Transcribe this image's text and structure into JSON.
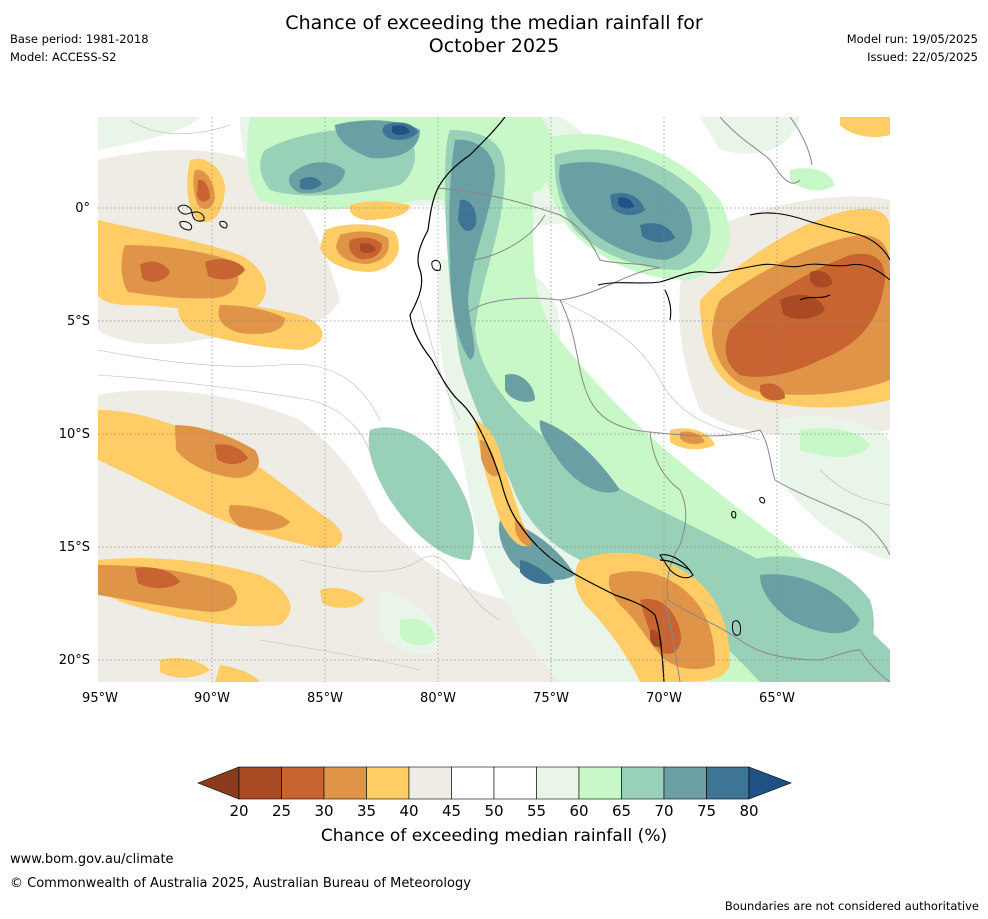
{
  "title_line1": "Chance of exceeding the median rainfall for",
  "title_line2": "October 2025",
  "meta_left": {
    "base_period": "Base period: 1981-2018",
    "model": "Model: ACCESS-S2"
  },
  "meta_right": {
    "model_run": "Model run: 19/05/2025",
    "issued": "Issued: 22/05/2025"
  },
  "map": {
    "lat_labels": [
      "0°",
      "5°S",
      "10°S",
      "15°S",
      "20°S"
    ],
    "lon_labels": [
      "95°W",
      "90°W",
      "85°W",
      "80°W",
      "75°W",
      "70°W",
      "65°W"
    ],
    "lat_values": [
      0,
      -5,
      -10,
      -15,
      -20
    ],
    "lon_values": [
      -95,
      -90,
      -85,
      -80,
      -75,
      -70,
      -65
    ],
    "extent": {
      "lon_min": -95,
      "lon_max": -60,
      "lat_min": -21,
      "lat_max": 4
    }
  },
  "colorbar": {
    "title": "Chance of exceeding median rainfall (%)",
    "ticks": [
      "20",
      "25",
      "30",
      "35",
      "40",
      "45",
      "50",
      "55",
      "60",
      "65",
      "70",
      "75",
      "80"
    ],
    "low_extend_color": "#8c3a1e",
    "high_extend_color": "#1f5284",
    "bin_colors": [
      "#a84a24",
      "#c86432",
      "#e09448",
      "#ffcc66",
      "#efece6",
      "#ffffff",
      "#ffffff",
      "#e8f5e8",
      "#c8f8c8",
      "#98d0b8",
      "#6aa0a4",
      "#3e7494"
    ]
  },
  "footer": {
    "website": "www.bom.gov.au/climate",
    "copyright": "© Commonwealth of Australia 2025, Australian Bureau of Meteorology",
    "disclaimer": "Boundaries are not considered authoritative"
  }
}
